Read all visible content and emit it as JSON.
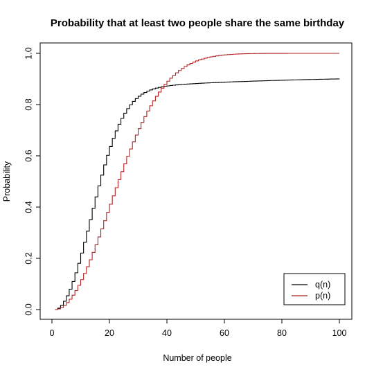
{
  "chart_data": {
    "type": "line",
    "title": "Probability that at least two people share the same birthday",
    "xlabel": "Number of people",
    "ylabel": "Probability",
    "xlim": [
      0,
      100
    ],
    "ylim": [
      0,
      1
    ],
    "x_ticks": [
      "0",
      "20",
      "40",
      "60",
      "80",
      "100"
    ],
    "y_ticks": [
      "0.0",
      "0.2",
      "0.4",
      "0.6",
      "0.8",
      "1.0"
    ],
    "legend_position": "bottom-right",
    "grid": false,
    "step_style": "step",
    "x": [
      1,
      2,
      3,
      4,
      5,
      6,
      7,
      8,
      9,
      10,
      11,
      12,
      13,
      14,
      15,
      16,
      17,
      18,
      19,
      20,
      21,
      22,
      23,
      24,
      25,
      26,
      27,
      28,
      29,
      30,
      31,
      32,
      33,
      34,
      35,
      36,
      37,
      38,
      39,
      40,
      41,
      42,
      43,
      44,
      45,
      46,
      47,
      48,
      49,
      50,
      51,
      52,
      53,
      54,
      55,
      56,
      57,
      58,
      59,
      60,
      61,
      62,
      63,
      64,
      65,
      66,
      67,
      68,
      69,
      70,
      71,
      72,
      73,
      74,
      75,
      76,
      77,
      78,
      79,
      80,
      81,
      82,
      83,
      84,
      85,
      86,
      87,
      88,
      89,
      90,
      91,
      92,
      93,
      94,
      95,
      96,
      97,
      98,
      99,
      100
    ],
    "series": [
      {
        "name": "q(n)",
        "color": "#000000",
        "values": [
          0,
          0.0055,
          0.0164,
          0.0326,
          0.0538,
          0.0796,
          0.1097,
          0.1436,
          0.1807,
          0.2206,
          0.2627,
          0.3063,
          0.3508,
          0.3955,
          0.4398,
          0.4831,
          0.5249,
          0.5647,
          0.602,
          0.6367,
          0.6685,
          0.6974,
          0.7233,
          0.7463,
          0.7665,
          0.7841,
          0.7993,
          0.8123,
          0.8234,
          0.8327,
          0.8406,
          0.8472,
          0.8527,
          0.8573,
          0.8612,
          0.8644,
          0.8671,
          0.8694,
          0.8713,
          0.873,
          0.8744,
          0.8757,
          0.8768,
          0.8778,
          0.8787,
          0.8795,
          0.8803,
          0.881,
          0.8817,
          0.8823,
          0.8829,
          0.8835,
          0.8841,
          0.8846,
          0.8851,
          0.8856,
          0.8861,
          0.8866,
          0.8871,
          0.8876,
          0.888,
          0.8885,
          0.8889,
          0.8893,
          0.8897,
          0.8901,
          0.8905,
          0.8909,
          0.8913,
          0.8917,
          0.8921,
          0.8925,
          0.8928,
          0.8932,
          0.8935,
          0.8939,
          0.8942,
          0.8945,
          0.8948,
          0.8951,
          0.8954,
          0.8957,
          0.896,
          0.8963,
          0.8966,
          0.8969,
          0.8972,
          0.8974,
          0.8977,
          0.898,
          0.8982,
          0.8985,
          0.8987,
          0.899,
          0.8992,
          0.8994,
          0.8997,
          0.8999,
          0.9001,
          0.9003
        ]
      },
      {
        "name": "p(n)",
        "color": "#b22222",
        "values": [
          0,
          0.0027,
          0.0082,
          0.0164,
          0.0271,
          0.0405,
          0.0562,
          0.0743,
          0.0946,
          0.1169,
          0.1411,
          0.167,
          0.1944,
          0.2231,
          0.2529,
          0.2836,
          0.315,
          0.3469,
          0.3791,
          0.4114,
          0.4437,
          0.4757,
          0.5073,
          0.5383,
          0.5687,
          0.5982,
          0.6269,
          0.6545,
          0.681,
          0.7063,
          0.7305,
          0.7533,
          0.775,
          0.7953,
          0.8144,
          0.8322,
          0.8487,
          0.8641,
          0.8782,
          0.8912,
          0.9032,
          0.914,
          0.9239,
          0.9329,
          0.941,
          0.9483,
          0.9548,
          0.9606,
          0.9658,
          0.9704,
          0.9744,
          0.978,
          0.9811,
          0.9839,
          0.9863,
          0.9883,
          0.9901,
          0.9917,
          0.993,
          0.9941,
          0.9951,
          0.9959,
          0.9966,
          0.9972,
          0.9977,
          0.9981,
          0.9984,
          0.9987,
          0.999,
          0.9992,
          0.9993,
          0.9995,
          0.9996,
          0.9997,
          0.9997,
          0.9998,
          0.9998,
          0.9999,
          0.9999,
          0.9999,
          0.9999,
          1.0,
          1.0,
          1.0,
          1.0,
          1.0,
          1.0,
          1.0,
          1.0,
          1.0,
          1.0,
          1.0,
          1.0,
          1.0,
          1.0,
          1.0,
          1.0,
          1.0,
          1.0,
          1.0
        ]
      }
    ]
  }
}
